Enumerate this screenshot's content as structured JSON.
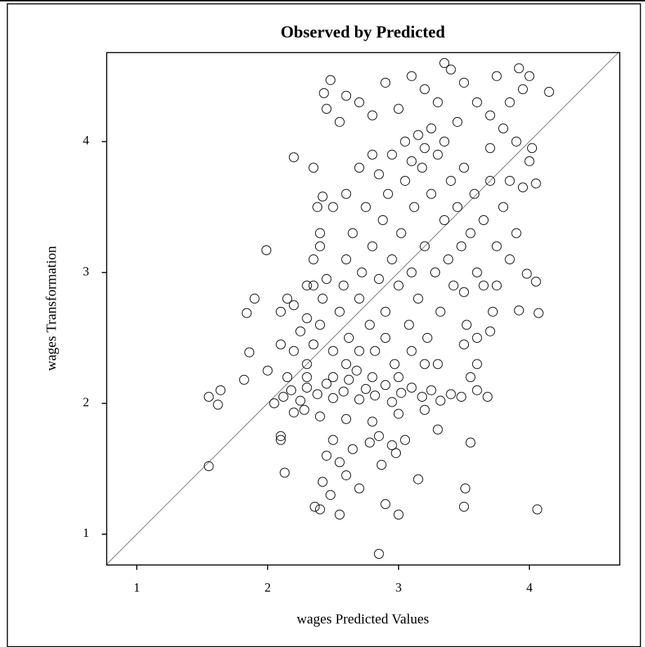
{
  "chart_data": {
    "type": "scatter",
    "title": "Observed by Predicted",
    "x_label": "wages Predicted Values",
    "y_label": "wages Transformation",
    "xlim": [
      0.77,
      4.69
    ],
    "ylim": [
      0.765,
      4.68
    ],
    "xticks": [
      1,
      2,
      3,
      4
    ],
    "yticks": [
      1,
      2,
      3,
      4
    ],
    "color": "#000000",
    "x": [
      1.55,
      1.55,
      1.62,
      1.64,
      1.82,
      1.84,
      1.86,
      1.9,
      1.99,
      2.2,
      2.35,
      2.43,
      2.48,
      2.85,
      3.51,
      3.5,
      4.06,
      4.07,
      4.15,
      3.92,
      3.35,
      3.98,
      4.05,
      3.92,
      3.55,
      3.15,
      2.13,
      2.1,
      2.1,
      2.36,
      2.4,
      2.55,
      3.0,
      2.87,
      2.12,
      2.18,
      2.25,
      2.3,
      2.38,
      2.45,
      2.5,
      2.58,
      2.62,
      2.7,
      2.75,
      2.82,
      2.9,
      2.95,
      3.02,
      3.1,
      3.18,
      3.25,
      3.32,
      3.4,
      3.48,
      3.6,
      3.68,
      2.2,
      2.4,
      2.6,
      2.8,
      3.0,
      3.2,
      2.05,
      2.28,
      2.5,
      2.65,
      2.78,
      2.95,
      3.05,
      2.45,
      2.6,
      2.7,
      2.42,
      2.48,
      2.9,
      2.98,
      3.3,
      2.55,
      2.85,
      2.3,
      2.35,
      2.4,
      2.42,
      2.45,
      2.5,
      2.55,
      2.58,
      2.6,
      2.62,
      2.65,
      2.68,
      2.7,
      2.72,
      2.75,
      2.78,
      2.8,
      2.82,
      2.85,
      2.88,
      2.9,
      2.92,
      2.95,
      2.97,
      3.0,
      3.02,
      3.05,
      3.08,
      3.1,
      3.12,
      3.15,
      3.18,
      3.2,
      3.22,
      3.25,
      3.28,
      3.3,
      3.32,
      3.35,
      3.38,
      3.4,
      3.42,
      3.45,
      3.48,
      3.5,
      3.52,
      3.55,
      3.58,
      3.6,
      3.65,
      3.7,
      3.75,
      3.8,
      2.85,
      2.95,
      3.05,
      3.15,
      3.25,
      3.35,
      3.45,
      3.1,
      3.2,
      2.4,
      2.35,
      2.3,
      2.2,
      2.15,
      2.25,
      2.5,
      2.6,
      2.7,
      2.8,
      2.5,
      2.6,
      2.7,
      2.9,
      3.1,
      3.3,
      3.5,
      3.6,
      3.0,
      2.8,
      3.2,
      2.6,
      2.7,
      2.8,
      2.9,
      3.0,
      3.1,
      3.2,
      3.3,
      3.4,
      3.5,
      3.6,
      3.7,
      3.75,
      3.85,
      3.95,
      4.0,
      3.9,
      4.0,
      3.85,
      3.95,
      4.02,
      4.05,
      3.7,
      3.8,
      2.55,
      2.45,
      2.0,
      2.1,
      2.15,
      2.2,
      2.3,
      2.38,
      2.42,
      2.35,
      2.4,
      2.1,
      2.3,
      3.6,
      3.65,
      3.7,
      3.72,
      3.55,
      3.5,
      3.85,
      3.9,
      3.75
    ],
    "values": [
      1.52,
      2.05,
      1.99,
      2.1,
      2.18,
      2.69,
      2.39,
      2.8,
      3.17,
      3.88,
      3.8,
      4.37,
      4.47,
      0.85,
      1.35,
      1.21,
      1.19,
      2.69,
      4.38,
      4.56,
      4.6,
      2.99,
      2.93,
      2.71,
      1.7,
      1.42,
      1.47,
      1.72,
      1.75,
      1.21,
      1.19,
      1.15,
      1.15,
      1.53,
      2.05,
      2.1,
      2.02,
      2.12,
      2.07,
      2.15,
      2.04,
      2.09,
      2.18,
      2.03,
      2.11,
      2.06,
      2.14,
      2.01,
      2.08,
      2.12,
      2.05,
      2.1,
      2.02,
      2.07,
      2.05,
      2.1,
      2.05,
      1.93,
      1.9,
      1.88,
      1.86,
      1.92,
      1.95,
      2.0,
      1.95,
      1.72,
      1.65,
      1.7,
      1.68,
      1.72,
      1.6,
      1.45,
      1.35,
      1.4,
      1.3,
      1.23,
      1.62,
      1.8,
      1.55,
      1.75,
      2.3,
      2.45,
      2.6,
      2.8,
      2.95,
      2.4,
      2.7,
      2.9,
      3.1,
      2.5,
      3.3,
      2.25,
      2.8,
      3.0,
      3.5,
      2.6,
      3.2,
      2.4,
      2.95,
      3.4,
      2.7,
      3.6,
      3.1,
      2.3,
      2.9,
      3.3,
      3.7,
      2.6,
      3.0,
      3.5,
      2.8,
      3.8,
      3.2,
      2.5,
      3.6,
      3.0,
      3.9,
      2.7,
      3.4,
      3.1,
      3.7,
      2.9,
      3.5,
      3.2,
      3.8,
      2.6,
      3.3,
      3.6,
      3.0,
      3.4,
      3.7,
      3.2,
      3.5,
      3.75,
      3.9,
      4.0,
      4.05,
      4.1,
      4.0,
      4.15,
      3.85,
      3.95,
      3.3,
      2.9,
      2.65,
      2.4,
      2.2,
      2.55,
      3.5,
      3.6,
      3.8,
      3.9,
      2.2,
      2.3,
      2.4,
      2.5,
      2.4,
      2.3,
      2.45,
      2.3,
      2.2,
      2.2,
      2.3,
      4.35,
      4.3,
      4.2,
      4.45,
      4.25,
      4.5,
      4.4,
      4.3,
      4.55,
      4.45,
      4.3,
      4.2,
      4.5,
      4.3,
      4.4,
      4.5,
      4.0,
      3.85,
      3.7,
      3.65,
      3.95,
      3.68,
      3.95,
      4.1,
      4.15,
      4.25,
      2.25,
      2.45,
      2.8,
      2.75,
      2.9,
      3.5,
      3.58,
      3.1,
      3.2,
      2.7,
      2.2,
      2.5,
      2.9,
      2.55,
      2.7,
      2.2,
      2.85,
      3.1,
      3.3,
      2.9
    ]
  }
}
